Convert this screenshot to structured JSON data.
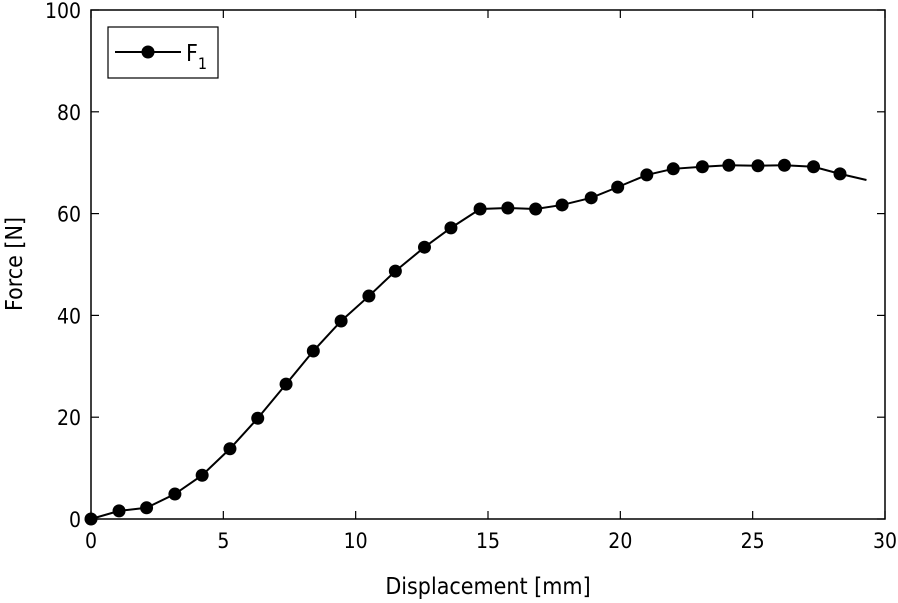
{
  "chart_data": {
    "type": "line",
    "title": "",
    "xlabel": "Displacement  [mm]",
    "ylabel": "Force  [N]",
    "xlim": [
      0,
      30
    ],
    "ylim": [
      0,
      100
    ],
    "xticks": [
      "0",
      "5",
      "10",
      "15",
      "20",
      "25",
      "30"
    ],
    "yticks": [
      "0",
      "20",
      "40",
      "60",
      "80",
      "100"
    ],
    "grid": false,
    "legend_position": "top-left",
    "series": [
      {
        "name": "F",
        "name_subscript": "1",
        "color": "#000000",
        "marker": "circle",
        "x": [
          0,
          1.06,
          2.1,
          3.17,
          4.2,
          5.25,
          6.3,
          7.37,
          8.4,
          9.45,
          10.5,
          11.5,
          12.6,
          13.6,
          14.7,
          15.75,
          16.8,
          17.8,
          18.9,
          19.9,
          21.0,
          22.0,
          23.1,
          24.1,
          25.2,
          26.2,
          27.3,
          28.3,
          29.3
        ],
        "y": [
          0,
          1.6,
          2.2,
          4.9,
          8.6,
          13.8,
          19.8,
          26.5,
          33.0,
          38.9,
          43.8,
          48.7,
          53.4,
          57.2,
          60.9,
          61.1,
          60.9,
          61.7,
          63.1,
          65.2,
          67.6,
          68.8,
          69.2,
          69.5,
          69.4,
          69.5,
          69.2,
          67.8,
          66.6
        ],
        "marker_count": 28
      }
    ]
  }
}
